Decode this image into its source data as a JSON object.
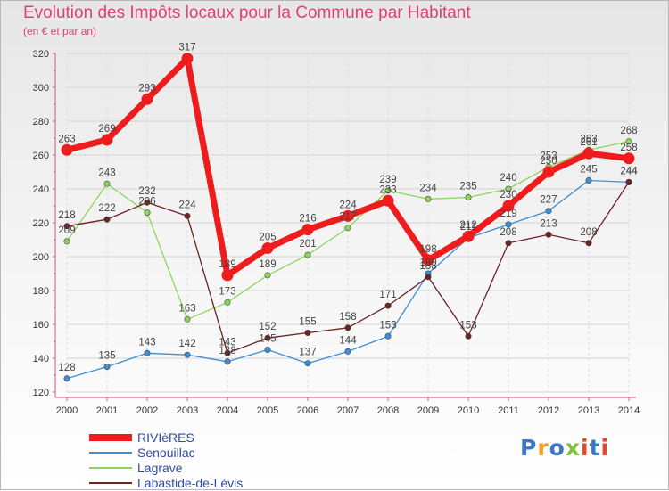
{
  "title": "Evolution des Impôts locaux pour la Commune par Habitant",
  "subtitle": "(en € et par an)",
  "logo_text": "Proxiti",
  "chart_data": {
    "type": "line",
    "x": [
      "2000",
      "2001",
      "2002",
      "2003",
      "2004",
      "2005",
      "2006",
      "2007",
      "2008",
      "2009",
      "2010",
      "2011",
      "2012",
      "2013",
      "2014"
    ],
    "ylim": [
      120,
      320
    ],
    "yticks": [
      120,
      140,
      160,
      180,
      200,
      220,
      240,
      260,
      280,
      300,
      320
    ],
    "grid": true,
    "legend_position": "bottom-left",
    "series": [
      {
        "name": "RIVIèRES",
        "color": "#ee1c1c",
        "values": [
          263,
          269,
          293,
          317,
          189,
          205,
          216,
          224,
          233,
          198,
          212,
          230,
          250,
          261,
          258
        ]
      },
      {
        "name": "Senouillac",
        "color": "#3d8fd6",
        "values": [
          128,
          135,
          143,
          142,
          138,
          145,
          137,
          144,
          153,
          190,
          211,
          219,
          227,
          245,
          244
        ]
      },
      {
        "name": "Lagrave",
        "color": "#8cd65a",
        "values": [
          209,
          243,
          226,
          163,
          173,
          189,
          201,
          217,
          239,
          234,
          235,
          240,
          253,
          263,
          268
        ]
      },
      {
        "name": "Labastide-de-Lévis",
        "color": "#6b2323",
        "values": [
          218,
          222,
          232,
          224,
          143,
          152,
          155,
          158,
          171,
          188,
          153,
          208,
          213,
          208,
          244
        ]
      }
    ]
  }
}
